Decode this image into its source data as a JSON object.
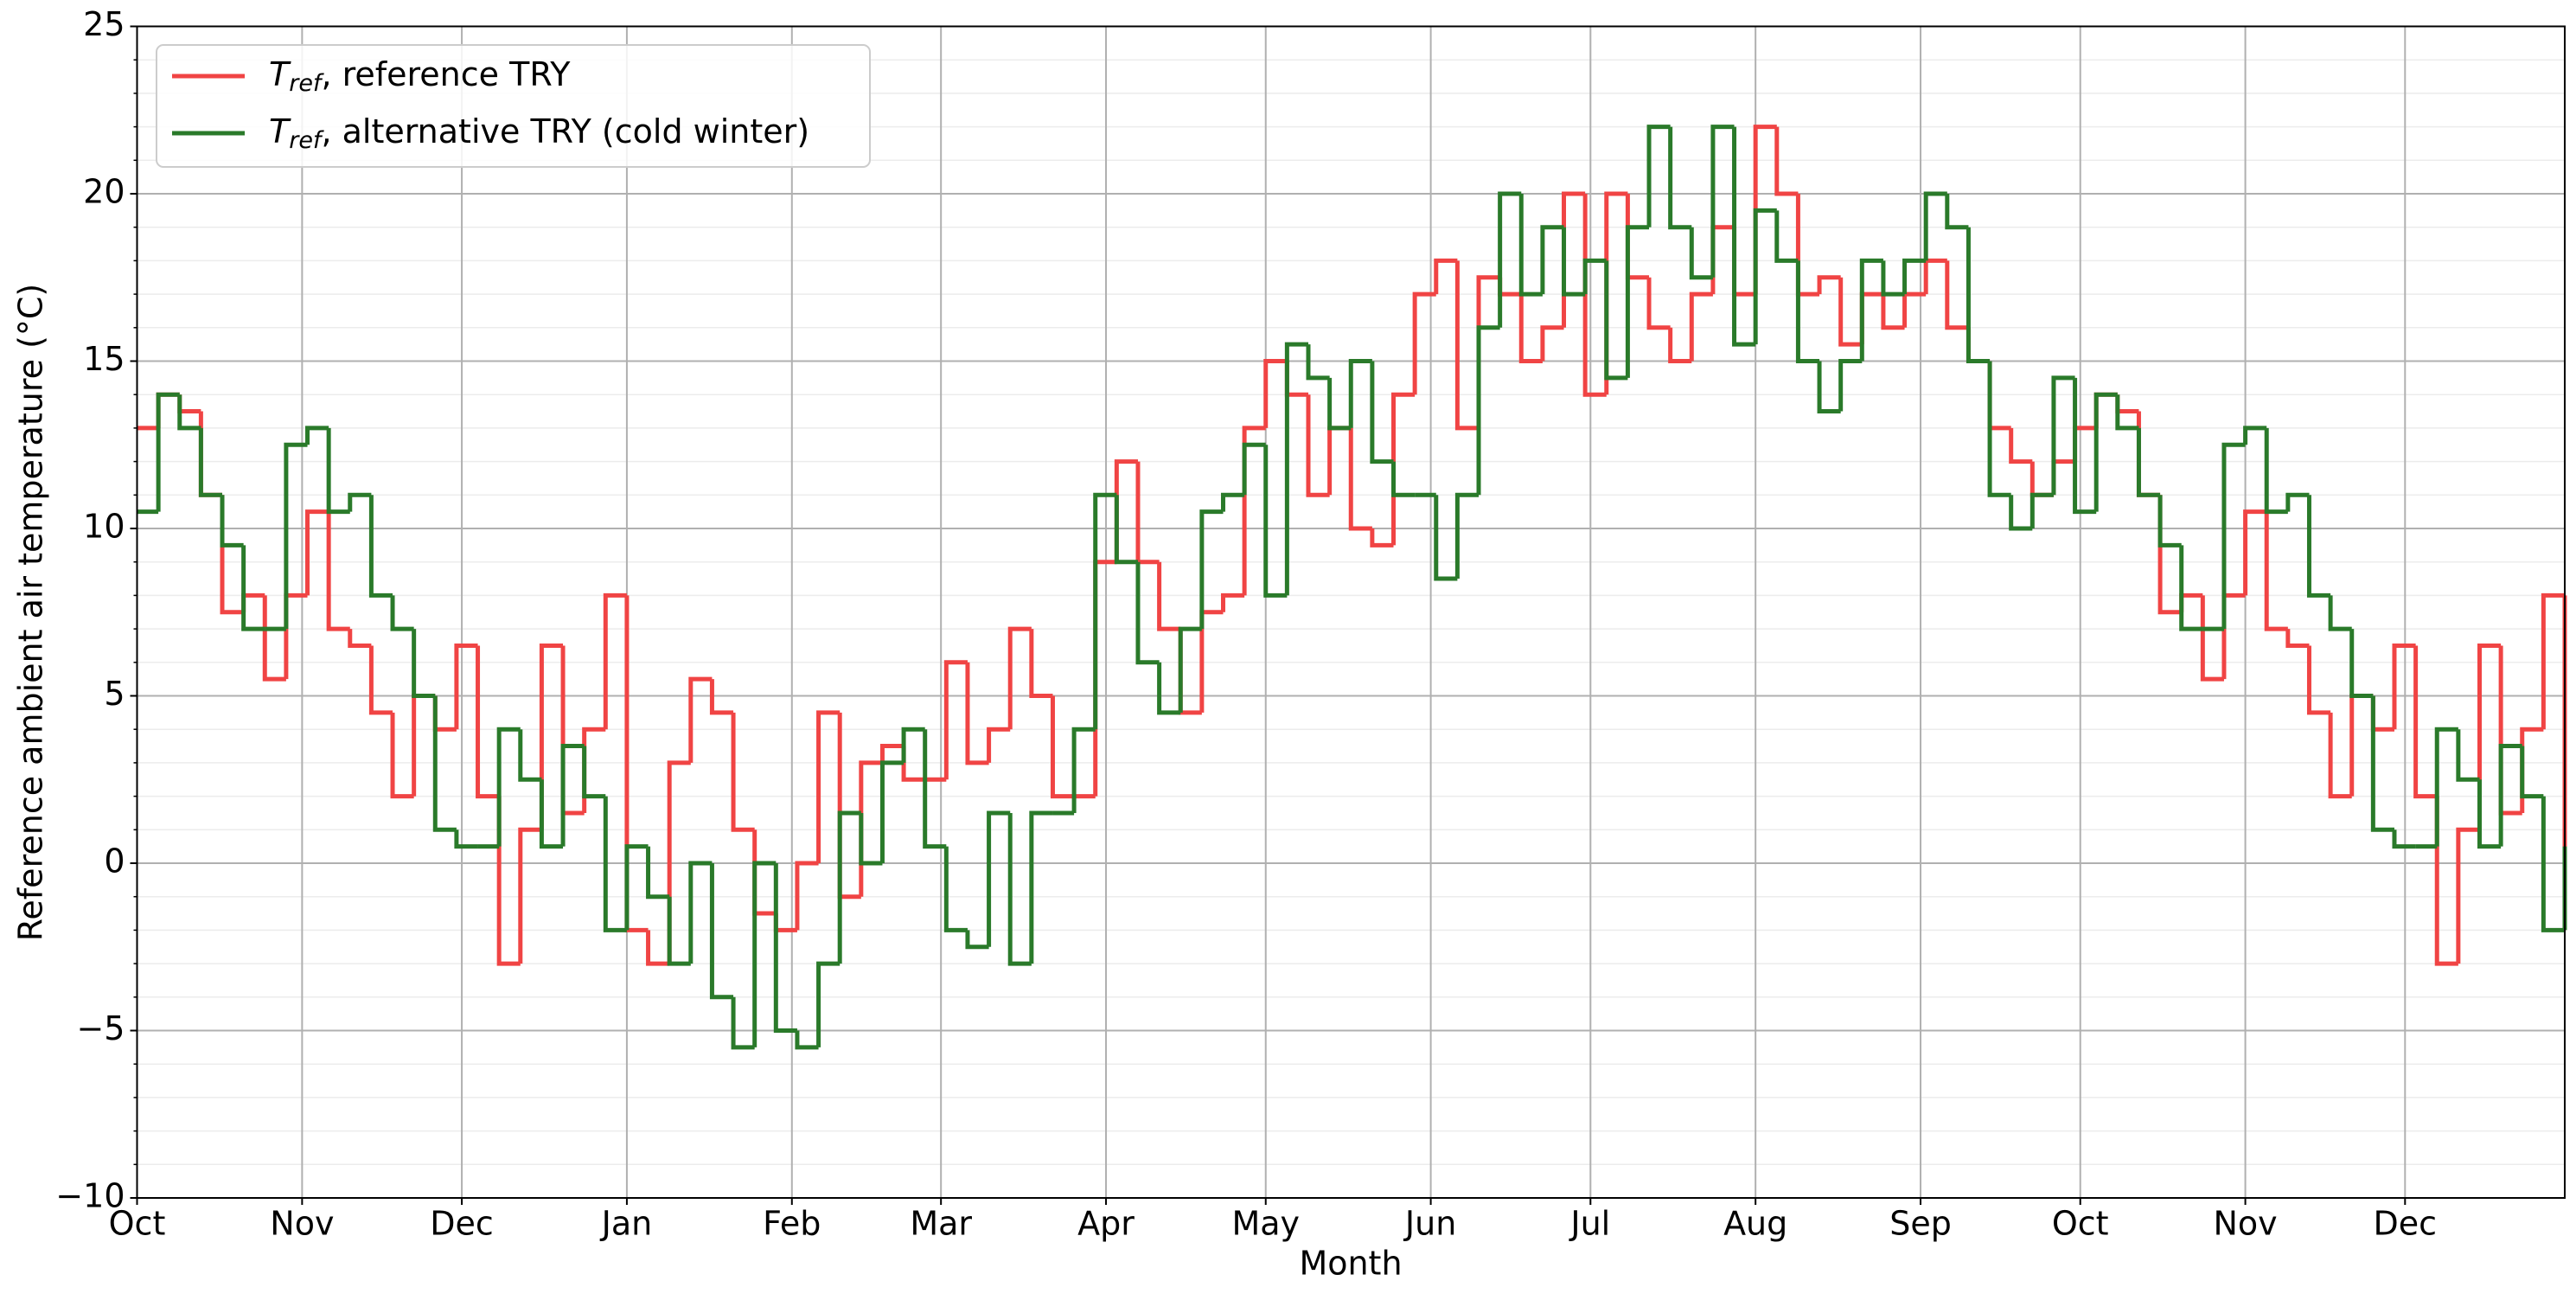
{
  "chart_data": {
    "type": "step",
    "x_label": "Month",
    "y_label": "Reference ambient air temperature (°C)",
    "xlim": [
      0,
      456
    ],
    "xticks": [
      {
        "value": 0,
        "label": "Oct"
      },
      {
        "value": 31,
        "label": "Nov"
      },
      {
        "value": 61,
        "label": "Dec"
      },
      {
        "value": 92,
        "label": "Jan"
      },
      {
        "value": 123,
        "label": "Feb"
      },
      {
        "value": 151,
        "label": "Mar"
      },
      {
        "value": 182,
        "label": "Apr"
      },
      {
        "value": 212,
        "label": "May"
      },
      {
        "value": 243,
        "label": "Jun"
      },
      {
        "value": 273,
        "label": "Jul"
      },
      {
        "value": 304,
        "label": "Aug"
      },
      {
        "value": 335,
        "label": "Sep"
      },
      {
        "value": 365,
        "label": "Oct"
      },
      {
        "value": 396,
        "label": "Nov"
      },
      {
        "value": 426,
        "label": "Dec"
      }
    ],
    "ylim": [
      -10,
      25
    ],
    "yticks": [
      {
        "value": -10,
        "label": "−10"
      },
      {
        "value": -5,
        "label": "−5"
      },
      0,
      5,
      10,
      15,
      20,
      25
    ],
    "yminorticks": [
      -10,
      -9,
      -8,
      -7,
      -6,
      -5,
      -4,
      -3,
      -2,
      -1,
      0,
      1,
      2,
      3,
      4,
      5,
      6,
      7,
      8,
      9,
      10,
      11,
      12,
      13,
      14,
      15,
      16,
      17,
      18,
      19,
      20,
      21,
      22,
      23,
      24,
      25
    ],
    "grid": true,
    "minor_grid": true,
    "legend": "upper left",
    "x": [
      0,
      4,
      8,
      12,
      16,
      20,
      24,
      28,
      32,
      36,
      40,
      44,
      48,
      52,
      56,
      60,
      64,
      68,
      72,
      76,
      80,
      84,
      88,
      92,
      96,
      100,
      104,
      108,
      112,
      116,
      120,
      124,
      128,
      132,
      136,
      140,
      144,
      148,
      152,
      156,
      160,
      164,
      168,
      172,
      176,
      180,
      184,
      188,
      192,
      196,
      200,
      204,
      208,
      212,
      216,
      220,
      224,
      228,
      232,
      236,
      240,
      244,
      248,
      252,
      256,
      260,
      264,
      268,
      272,
      276,
      280,
      284,
      288,
      292,
      296,
      300,
      304,
      308,
      312,
      316,
      320,
      324,
      328,
      332,
      336,
      340,
      344,
      348,
      352,
      356,
      360,
      364,
      368,
      372,
      376,
      380,
      384,
      388,
      392,
      396,
      400,
      404,
      408,
      412,
      416,
      420,
      424,
      428,
      432,
      436,
      440,
      444,
      448,
      452,
      456
    ],
    "series": [
      {
        "name": [
          "T",
          "ref",
          ", reference TRY"
        ],
        "color": "#f04444",
        "values": [
          13,
          14,
          13.5,
          11,
          7.5,
          8,
          5.5,
          8,
          10.5,
          7,
          6.5,
          4.5,
          2,
          5,
          4,
          6.5,
          2,
          -3,
          1,
          6.5,
          1.5,
          4,
          8,
          -2,
          -3,
          3,
          5.5,
          4.5,
          1,
          -1.5,
          -2,
          0,
          4.5,
          -1,
          3,
          3.5,
          2.5,
          2.5,
          6,
          3,
          4,
          7,
          5,
          2,
          2,
          9,
          12,
          9,
          7,
          4.5,
          7.5,
          8,
          13,
          15,
          14,
          11,
          13,
          10,
          9.5,
          14,
          17,
          18,
          13,
          17.5,
          17,
          15,
          16,
          20,
          14,
          20,
          17.5,
          16,
          15,
          17,
          19,
          17,
          22,
          20,
          17,
          17.5,
          15.5,
          17,
          16,
          17,
          18,
          16,
          15,
          13,
          12,
          11,
          12,
          13,
          14,
          13.5,
          11,
          7.5,
          8,
          5.5,
          8,
          10.5,
          7,
          6.5,
          4.5,
          2,
          5,
          4,
          6.5,
          2,
          -3,
          1,
          6.5,
          1.5,
          4,
          8,
          -2
        ]
      },
      {
        "name": [
          "T",
          "ref",
          ", alternative TRY (cold winter)"
        ],
        "color": "#2a7a2a",
        "values": [
          10.5,
          14,
          13,
          11,
          9.5,
          7,
          7,
          12.5,
          13,
          10.5,
          11,
          8,
          7,
          5,
          1,
          0.5,
          0.5,
          4,
          2.5,
          0.5,
          3.5,
          2,
          -2,
          0.5,
          -1,
          -3,
          0,
          -4,
          -5.5,
          0,
          -5,
          -5.5,
          -3,
          1.5,
          0,
          3,
          4,
          0.5,
          -2,
          -2.5,
          1.5,
          -3,
          1.5,
          1.5,
          4,
          11,
          9,
          6,
          4.5,
          7,
          10.5,
          11,
          12.5,
          8,
          15.5,
          14.5,
          13,
          15,
          12,
          11,
          11,
          8.5,
          11,
          16,
          20,
          17,
          19,
          17,
          18,
          14.5,
          19,
          22,
          19,
          17.5,
          22,
          15.5,
          19.5,
          18,
          15,
          13.5,
          15,
          18,
          17,
          18,
          20,
          19,
          15,
          11,
          10,
          11,
          14.5,
          10.5,
          14,
          13,
          11,
          9.5,
          7,
          7,
          12.5,
          13,
          10.5,
          11,
          8,
          7,
          5,
          1,
          0.5,
          0.5,
          4,
          2.5,
          0.5,
          3.5,
          2,
          -2,
          0.5
        ]
      }
    ]
  }
}
